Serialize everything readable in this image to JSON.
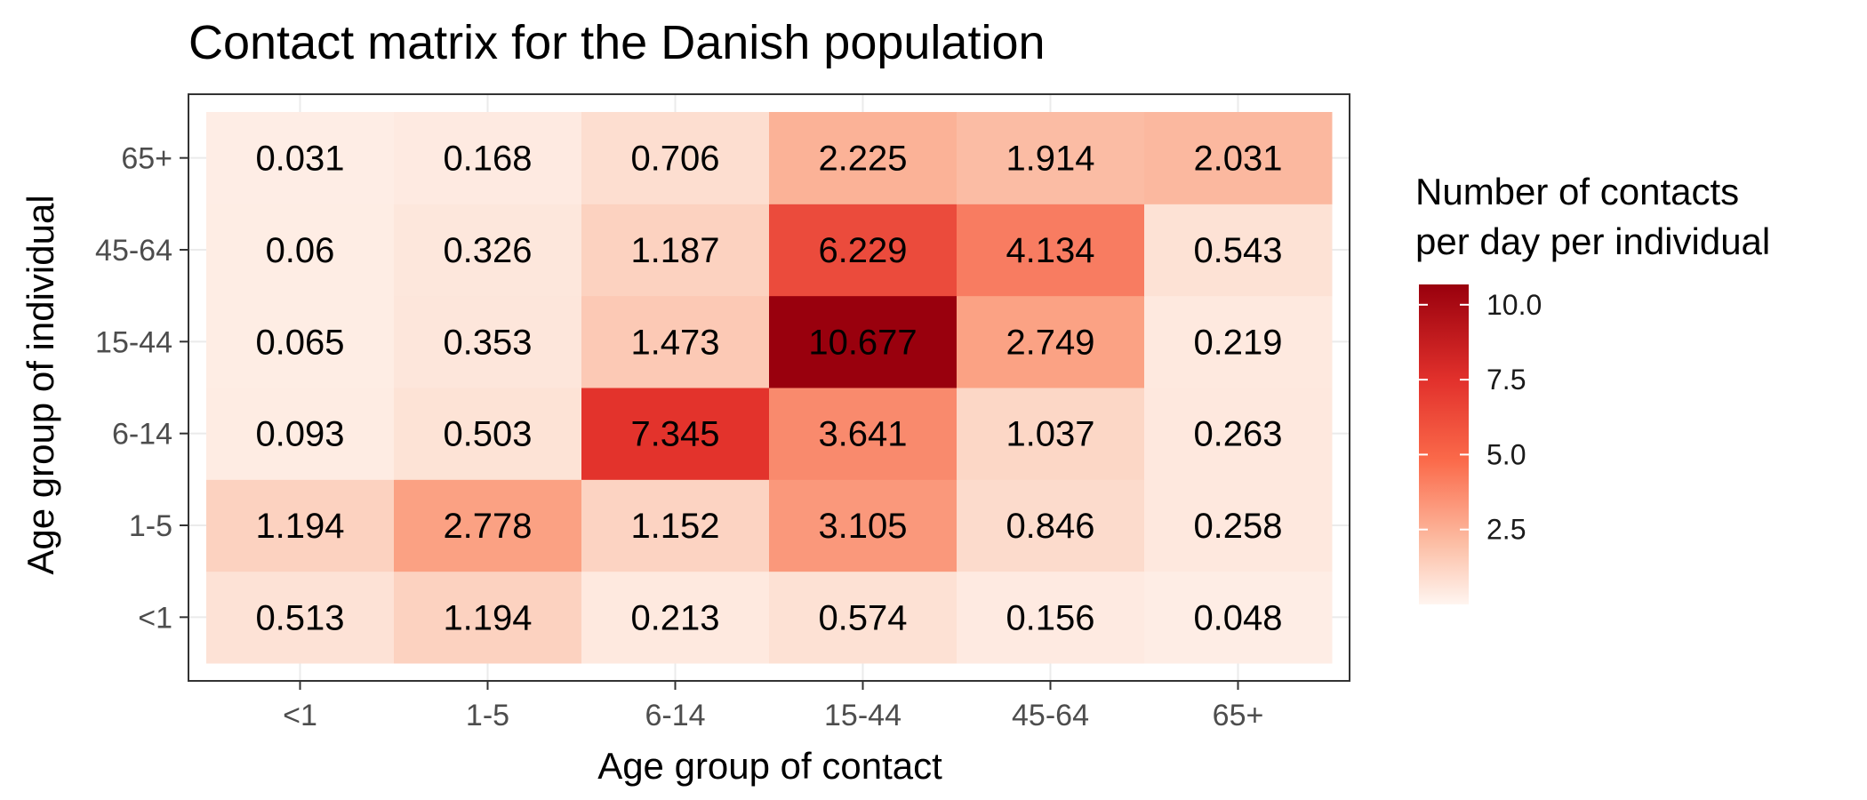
{
  "chart_data": {
    "type": "heatmap",
    "title": "Contact matrix for the Danish population",
    "xlabel": "Age group of contact",
    "ylabel": "Age group of individual",
    "x_categories": [
      "<1",
      "1-5",
      "6-14",
      "15-44",
      "45-64",
      "65+"
    ],
    "y_categories": [
      "<1",
      "1-5",
      "6-14",
      "15-44",
      "45-64",
      "65+"
    ],
    "values": [
      [
        0.513,
        1.194,
        0.213,
        0.574,
        0.156,
        0.048
      ],
      [
        1.194,
        2.778,
        1.152,
        3.105,
        0.846,
        0.258
      ],
      [
        0.093,
        0.503,
        7.345,
        3.641,
        1.037,
        0.263
      ],
      [
        0.065,
        0.353,
        1.473,
        10.677,
        2.749,
        0.219
      ],
      [
        0.06,
        0.326,
        1.187,
        6.229,
        4.134,
        0.543
      ],
      [
        0.031,
        0.168,
        0.706,
        2.225,
        1.914,
        2.031
      ]
    ],
    "legend": {
      "title_lines": [
        "Number of contacts",
        "per day per individual"
      ],
      "ticks": [
        2.5,
        5.0,
        7.5,
        10.0
      ],
      "tick_labels": [
        "2.5",
        "5.0",
        "7.5",
        "10.0"
      ],
      "range": [
        0,
        10.677
      ],
      "placement": "right"
    },
    "colors": {
      "low": "#fee0d2",
      "high": "#99000d"
    },
    "grid": true
  }
}
